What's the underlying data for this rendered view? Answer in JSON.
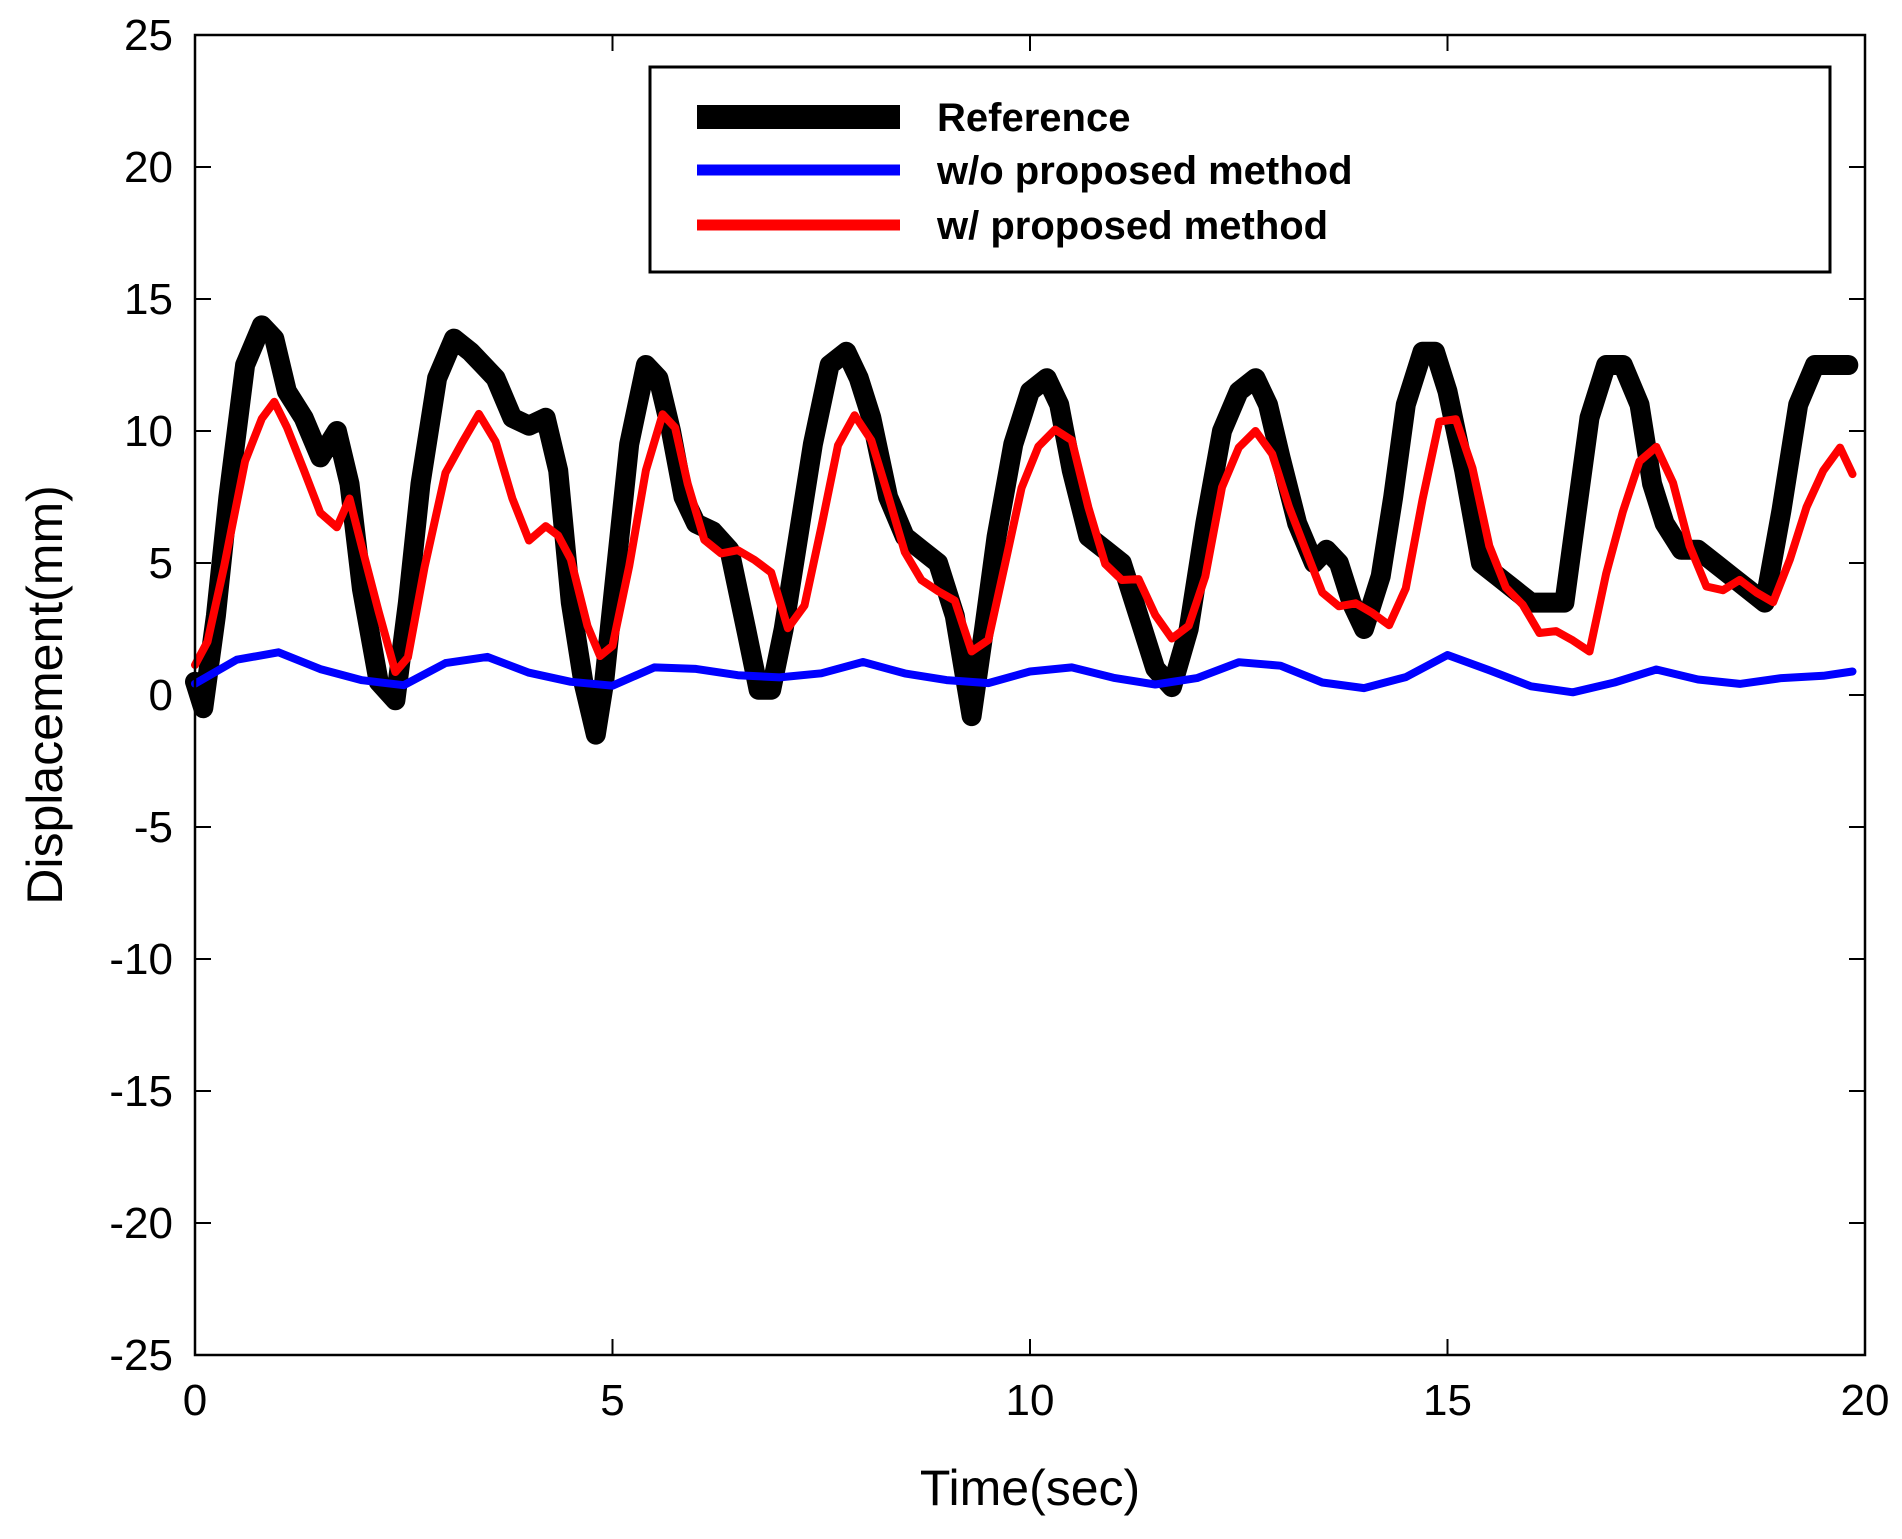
{
  "chart_data": {
    "type": "line",
    "title": "",
    "xlabel": "Time(sec)",
    "ylabel": "Displacement(mm)",
    "xlim": [
      0,
      20
    ],
    "ylim": [
      -25,
      25
    ],
    "xticks": [
      0,
      5,
      10,
      15,
      20
    ],
    "yticks": [
      25,
      20,
      15,
      10,
      5,
      0,
      -5,
      -10,
      -15,
      -20,
      -25
    ],
    "grid": false,
    "legend_position": "top-right",
    "series": [
      {
        "name": "Reference",
        "color": "#000000",
        "style": "thick",
        "x": [
          0,
          0.1,
          0.25,
          0.4,
          0.6,
          0.8,
          0.95,
          1.1,
          1.3,
          1.5,
          1.7,
          1.85,
          2.0,
          2.2,
          2.4,
          2.55,
          2.7,
          2.9,
          3.1,
          3.3,
          3.45,
          3.6,
          3.8,
          4.0,
          4.2,
          4.35,
          4.5,
          4.65,
          4.8,
          4.9,
          5.05,
          5.2,
          5.4,
          5.55,
          5.7,
          5.85,
          6.0,
          6.2,
          6.4,
          6.6,
          6.75,
          6.9,
          7.05,
          7.2,
          7.4,
          7.6,
          7.8,
          7.95,
          8.1,
          8.3,
          8.5,
          8.7,
          8.9,
          9.1,
          9.3,
          9.45,
          9.6,
          9.8,
          10.0,
          10.2,
          10.35,
          10.5,
          10.7,
          10.9,
          11.1,
          11.3,
          11.5,
          11.7,
          11.9,
          12.1,
          12.3,
          12.5,
          12.7,
          12.85,
          13.0,
          13.2,
          13.4,
          13.55,
          13.7,
          13.85,
          14.0,
          14.2,
          14.35,
          14.5,
          14.7,
          14.85,
          15.0,
          15.2,
          15.4,
          15.6,
          15.8,
          16.0,
          16.2,
          16.4,
          16.55,
          16.7,
          16.9,
          17.1,
          17.3,
          17.45,
          17.6,
          17.8,
          18.0,
          18.2,
          18.4,
          18.6,
          18.8,
          19.0,
          19.2,
          19.4,
          19.6,
          19.8
        ],
        "y": [
          0.5,
          -0.5,
          3.0,
          7.5,
          12.5,
          14.0,
          13.5,
          11.5,
          10.5,
          9.0,
          10.0,
          8.0,
          4.0,
          0.5,
          -0.2,
          3.5,
          8.0,
          12.0,
          13.5,
          13.0,
          12.5,
          12.0,
          10.5,
          10.2,
          10.5,
          8.5,
          3.5,
          0.5,
          -1.5,
          0.5,
          5.0,
          9.5,
          12.5,
          12.0,
          10.0,
          7.5,
          6.5,
          6.2,
          5.5,
          2.5,
          0.2,
          0.2,
          2.5,
          5.5,
          9.5,
          12.5,
          13.0,
          12.0,
          10.5,
          7.5,
          6.0,
          5.5,
          5.0,
          3.0,
          -0.8,
          2.5,
          6.0,
          9.5,
          11.5,
          12.0,
          11.0,
          8.5,
          6.0,
          5.5,
          5.0,
          3.0,
          1.0,
          0.3,
          2.5,
          6.5,
          10.0,
          11.5,
          12.0,
          11.0,
          9.0,
          6.5,
          5.0,
          5.5,
          5.0,
          3.5,
          2.5,
          4.5,
          7.5,
          11.0,
          13.0,
          13.0,
          11.5,
          8.5,
          5.0,
          4.5,
          4.0,
          3.5,
          3.5,
          3.5,
          7.0,
          10.5,
          12.5,
          12.5,
          11.0,
          8.0,
          6.5,
          5.5,
          5.5,
          5.0,
          4.5,
          4.0,
          3.5,
          7.0,
          11.0,
          12.5,
          12.5,
          12.5
        ],
        "note": "x values continue only to ~19.85 s"
      },
      {
        "name": "w/o proposed method",
        "color": "#0000ff",
        "style": "medium",
        "x": [
          0,
          0.5,
          1.0,
          1.5,
          2.0,
          2.5,
          3.0,
          3.5,
          4.0,
          4.5,
          5.0,
          5.5,
          6.0,
          6.5,
          7.0,
          7.5,
          8.0,
          8.5,
          9.0,
          9.5,
          10.0,
          10.5,
          11.0,
          11.5,
          12.0,
          12.5,
          13.0,
          13.5,
          14.0,
          14.5,
          15.0,
          15.5,
          16.0,
          16.5,
          17.0,
          17.5,
          18.0,
          18.5,
          19.0,
          19.5,
          19.85
        ],
        "y": [
          0.3,
          1.2,
          1.6,
          1.1,
          0.7,
          0.4,
          1.1,
          1.3,
          0.8,
          0.6,
          0.5,
          1.1,
          0.9,
          0.6,
          0.6,
          0.9,
          1.4,
          0.9,
          0.5,
          0.3,
          0.8,
          1.1,
          0.8,
          0.5,
          0.6,
          1.1,
          1.0,
          0.5,
          0.4,
          0.8,
          1.5,
          0.8,
          0.2,
          0.1,
          0.6,
          1.1,
          0.6,
          0.3,
          0.5,
          0.7,
          1.0
        ]
      },
      {
        "name": "w/ proposed method",
        "color": "#ff0000",
        "style": "medium",
        "x": [
          0,
          0.15,
          0.35,
          0.6,
          0.8,
          0.95,
          1.1,
          1.3,
          1.5,
          1.7,
          1.85,
          2.0,
          2.2,
          2.4,
          2.55,
          2.75,
          3.0,
          3.2,
          3.4,
          3.6,
          3.8,
          4.0,
          4.2,
          4.35,
          4.5,
          4.7,
          4.85,
          5.0,
          5.2,
          5.4,
          5.6,
          5.75,
          5.9,
          6.1,
          6.3,
          6.5,
          6.7,
          6.9,
          7.1,
          7.3,
          7.5,
          7.7,
          7.9,
          8.1,
          8.3,
          8.5,
          8.7,
          8.9,
          9.1,
          9.3,
          9.5,
          9.7,
          9.9,
          10.1,
          10.3,
          10.5,
          10.7,
          10.9,
          11.1,
          11.3,
          11.5,
          11.7,
          11.9,
          12.1,
          12.3,
          12.5,
          12.7,
          12.9,
          13.1,
          13.3,
          13.5,
          13.7,
          13.9,
          14.1,
          14.3,
          14.5,
          14.7,
          14.9,
          15.1,
          15.3,
          15.5,
          15.7,
          15.9,
          16.1,
          16.3,
          16.5,
          16.7,
          16.9,
          17.1,
          17.3,
          17.5,
          17.7,
          17.9,
          18.1,
          18.3,
          18.5,
          18.7,
          18.9,
          19.1,
          19.3,
          19.5,
          19.7,
          19.85
        ],
        "y": [
          1.0,
          2.0,
          5.0,
          9.0,
          10.5,
          11.0,
          10.0,
          8.5,
          7.0,
          6.5,
          7.5,
          5.5,
          3.0,
          0.8,
          1.5,
          5.0,
          8.5,
          9.5,
          10.5,
          9.5,
          7.5,
          6.0,
          6.5,
          6.0,
          5.0,
          2.5,
          1.5,
          2.0,
          5.0,
          8.5,
          10.5,
          10.0,
          8.0,
          6.0,
          5.5,
          5.5,
          5.0,
          4.5,
          2.5,
          3.5,
          6.5,
          9.5,
          10.5,
          9.5,
          7.5,
          5.5,
          4.5,
          4.0,
          3.5,
          1.5,
          2.0,
          5.0,
          8.0,
          9.5,
          10.0,
          9.5,
          7.0,
          5.0,
          4.5,
          4.5,
          3.0,
          2.0,
          2.5,
          4.5,
          8.0,
          9.5,
          10.0,
          9.0,
          7.0,
          5.5,
          4.0,
          3.5,
          3.5,
          3.0,
          2.5,
          4.0,
          7.5,
          10.5,
          10.5,
          8.5,
          5.5,
          4.0,
          3.5,
          2.5,
          2.5,
          2.0,
          1.5,
          4.5,
          7.0,
          9.0,
          9.5,
          8.0,
          5.5,
          4.0,
          4.0,
          4.5,
          4.0,
          3.5,
          5.0,
          7.0,
          8.5,
          9.5,
          8.5
        ]
      }
    ]
  }
}
